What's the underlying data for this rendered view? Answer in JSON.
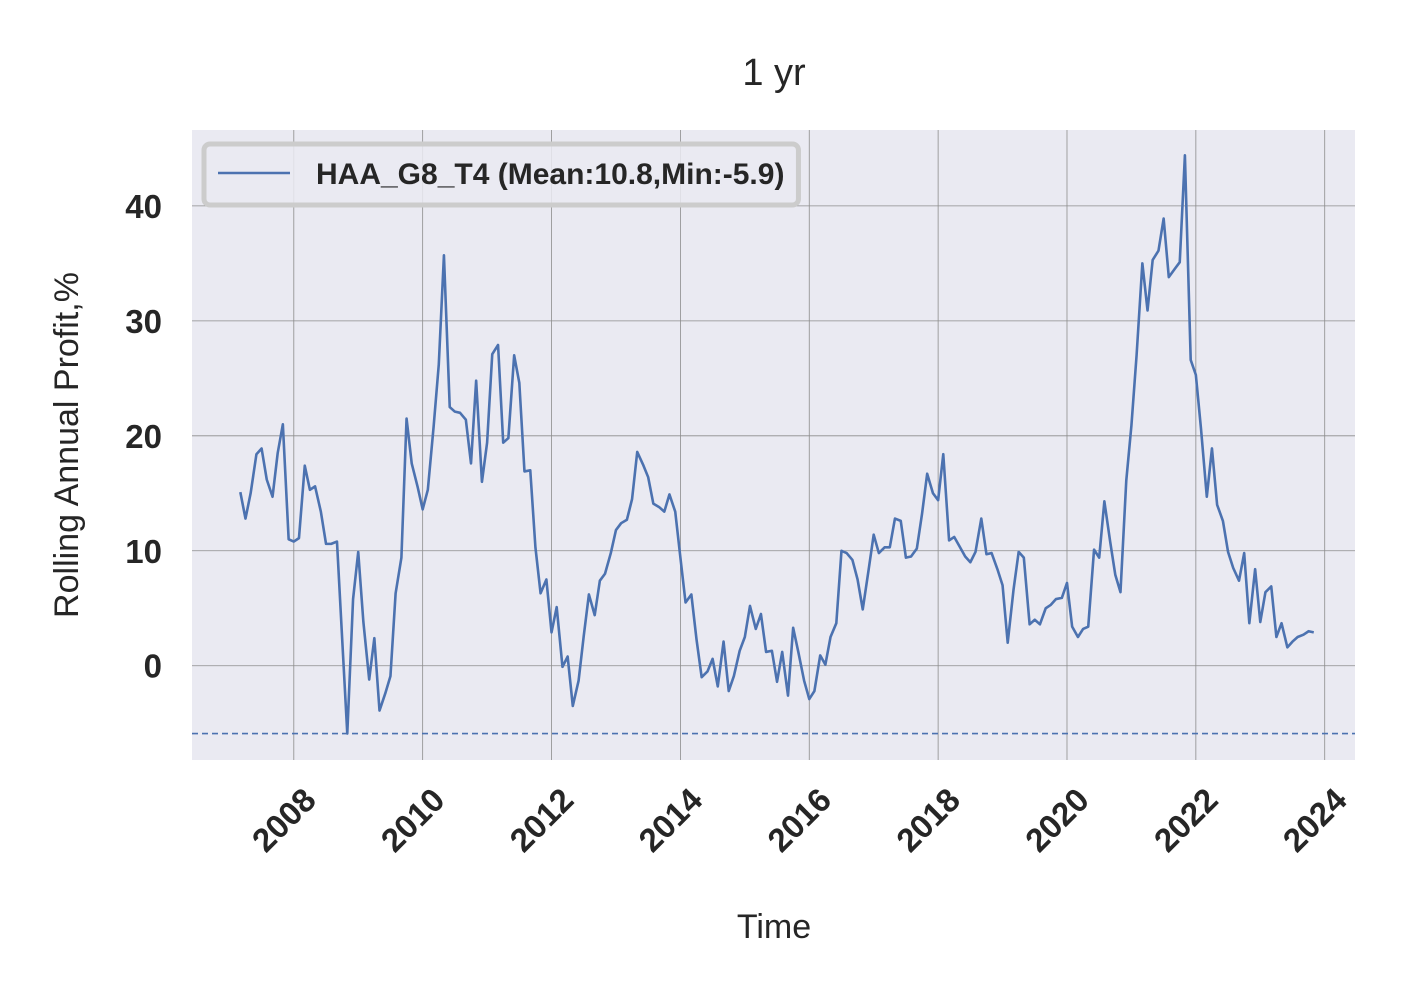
{
  "chart_data": {
    "type": "line",
    "title": "1 yr",
    "xlabel": "Time",
    "ylabel": "Rolling Annual Profit,%",
    "xlim": [
      2006.42,
      2024.47
    ],
    "ylim": [
      -8.2,
      46.6
    ],
    "xticks": [
      2008,
      2010,
      2012,
      2014,
      2016,
      2018,
      2020,
      2022,
      2024
    ],
    "yticks": [
      0,
      10,
      20,
      30,
      40
    ],
    "grid": true,
    "legend": "upper left",
    "background": "#eaeaf2",
    "hline": {
      "value": -5.9,
      "color": "#4c72b0",
      "style": "dashed"
    },
    "x": [
      2007.17,
      2007.25,
      2007.33,
      2007.42,
      2007.5,
      2007.58,
      2007.67,
      2007.75,
      2007.83,
      2007.92,
      2008,
      2008.08,
      2008.17,
      2008.25,
      2008.33,
      2008.42,
      2008.5,
      2008.58,
      2008.67,
      2008.75,
      2008.83,
      2008.92,
      2009,
      2009.08,
      2009.17,
      2009.25,
      2009.33,
      2009.42,
      2009.5,
      2009.58,
      2009.67,
      2009.75,
      2009.83,
      2009.92,
      2010,
      2010.08,
      2010.17,
      2010.25,
      2010.33,
      2010.42,
      2010.5,
      2010.58,
      2010.67,
      2010.75,
      2010.83,
      2010.92,
      2011,
      2011.08,
      2011.17,
      2011.25,
      2011.33,
      2011.42,
      2011.5,
      2011.58,
      2011.67,
      2011.75,
      2011.83,
      2011.92,
      2012,
      2012.08,
      2012.17,
      2012.25,
      2012.33,
      2012.42,
      2012.5,
      2012.58,
      2012.67,
      2012.75,
      2012.83,
      2012.92,
      2013,
      2013.08,
      2013.17,
      2013.25,
      2013.33,
      2013.42,
      2013.5,
      2013.58,
      2013.67,
      2013.75,
      2013.83,
      2013.92,
      2014,
      2014.08,
      2014.17,
      2014.25,
      2014.33,
      2014.42,
      2014.5,
      2014.58,
      2014.67,
      2014.75,
      2014.83,
      2014.92,
      2015,
      2015.08,
      2015.17,
      2015.25,
      2015.33,
      2015.42,
      2015.5,
      2015.58,
      2015.67,
      2015.75,
      2015.83,
      2015.92,
      2016,
      2016.08,
      2016.17,
      2016.25,
      2016.33,
      2016.42,
      2016.5,
      2016.58,
      2016.67,
      2016.75,
      2016.83,
      2016.92,
      2017,
      2017.08,
      2017.17,
      2017.25,
      2017.33,
      2017.42,
      2017.5,
      2017.58,
      2017.67,
      2017.75,
      2017.83,
      2017.92,
      2018,
      2018.08,
      2018.17,
      2018.25,
      2018.33,
      2018.42,
      2018.5,
      2018.58,
      2018.67,
      2018.75,
      2018.83,
      2018.92,
      2019,
      2019.08,
      2019.17,
      2019.25,
      2019.33,
      2019.42,
      2019.5,
      2019.58,
      2019.67,
      2019.75,
      2019.83,
      2019.92,
      2020,
      2020.08,
      2020.17,
      2020.25,
      2020.33,
      2020.42,
      2020.5,
      2020.58,
      2020.67,
      2020.75,
      2020.83,
      2020.92,
      2021,
      2021.08,
      2021.17,
      2021.25,
      2021.33,
      2021.42,
      2021.5,
      2021.58,
      2021.67,
      2021.75,
      2021.83,
      2021.92,
      2022,
      2022.08,
      2022.17,
      2022.25,
      2022.33,
      2022.42,
      2022.5,
      2022.58,
      2022.67,
      2022.75,
      2022.83,
      2022.92,
      2023,
      2023.08,
      2023.17,
      2023.25,
      2023.33,
      2023.42,
      2023.5,
      2023.58,
      2023.67,
      2023.75,
      2023.83
    ],
    "series": [
      {
        "name": "HAA_G8_T4 (Mean:10.8,Min:-5.9)",
        "color": "#4c72b0",
        "values": [
          15.1,
          12.8,
          15,
          18.4,
          18.9,
          16.2,
          14.7,
          18.5,
          21,
          11,
          10.8,
          11.1,
          17.4,
          15.3,
          15.6,
          13.4,
          10.6,
          10.6,
          10.8,
          2.4,
          -5.9,
          5.8,
          9.9,
          3.8,
          -1.2,
          2.4,
          -3.9,
          -2.4,
          -0.9,
          6.3,
          9.4,
          21.5,
          17.6,
          15.6,
          13.6,
          15.3,
          20.8,
          26.2,
          35.7,
          22.5,
          22.1,
          22,
          21.4,
          17.6,
          24.8,
          16,
          19.4,
          27.1,
          27.9,
          19.4,
          19.8,
          27,
          24.6,
          16.9,
          17,
          10.3,
          6.3,
          7.5,
          2.9,
          5.1,
          -0.1,
          0.8,
          -3.5,
          -1.3,
          2.6,
          6.2,
          4.4,
          7.4,
          8,
          9.8,
          11.8,
          12.4,
          12.7,
          14.5,
          18.6,
          17.5,
          16.4,
          14.1,
          13.8,
          13.4,
          14.9,
          13.4,
          9.4,
          5.5,
          6.2,
          2.3,
          -1,
          -0.5,
          0.6,
          -1.8,
          2.1,
          -2.2,
          -0.9,
          1.3,
          2.5,
          5.2,
          3.2,
          4.5,
          1.2,
          1.3,
          -1.4,
          1.2,
          -2.6,
          3.3,
          1.2,
          -1.3,
          -2.9,
          -2.2,
          0.9,
          0.1,
          2.5,
          3.7,
          10,
          9.8,
          9.2,
          7.5,
          4.9,
          8.3,
          11.4,
          9.8,
          10.3,
          10.3,
          12.8,
          12.6,
          9.4,
          9.5,
          10.2,
          13.2,
          16.7,
          15,
          14.4,
          18.4,
          10.9,
          11.2,
          10.4,
          9.5,
          9,
          9.9,
          12.8,
          9.7,
          9.8,
          8.4,
          7,
          2,
          6.6,
          9.9,
          9.4,
          3.6,
          4,
          3.6,
          5,
          5.3,
          5.8,
          5.9,
          7.2,
          3.4,
          2.5,
          3.2,
          3.4,
          10.1,
          9.4,
          14.3,
          10.8,
          7.9,
          6.4,
          16.1,
          20.9,
          27,
          35,
          30.9,
          35.3,
          36.1,
          38.9,
          33.8,
          34.5,
          35.1,
          44.4,
          26.6,
          25.3,
          20.6,
          14.7,
          18.9,
          14,
          12.6,
          9.9,
          8.5,
          7.4,
          9.8,
          3.7,
          8.4,
          3.8,
          6.4,
          6.9,
          2.5,
          3.7,
          1.6,
          2.1,
          2.5,
          2.7,
          3,
          2.9
        ]
      }
    ]
  }
}
